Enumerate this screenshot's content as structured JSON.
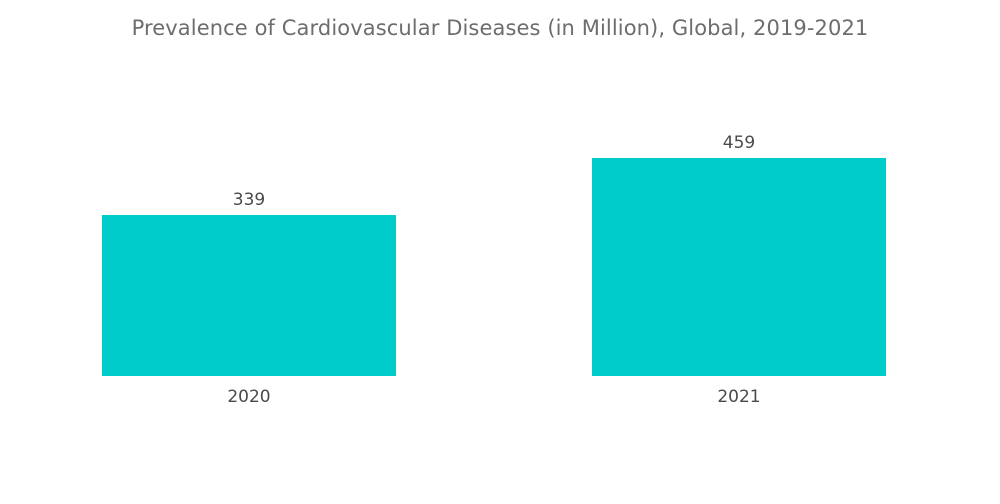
{
  "chart_data": {
    "type": "bar",
    "title": "Prevalence of Cardiovascular Diseases (in Million), Global, 2019-2021",
    "categories": [
      "2020",
      "2021"
    ],
    "values": [
      339,
      459
    ],
    "value_labels": [
      "339",
      "459"
    ],
    "xlabel": "",
    "ylabel": "",
    "ylim": [
      0,
      459
    ],
    "grid": false,
    "legend": "none",
    "bar_color": "#00cccc"
  }
}
